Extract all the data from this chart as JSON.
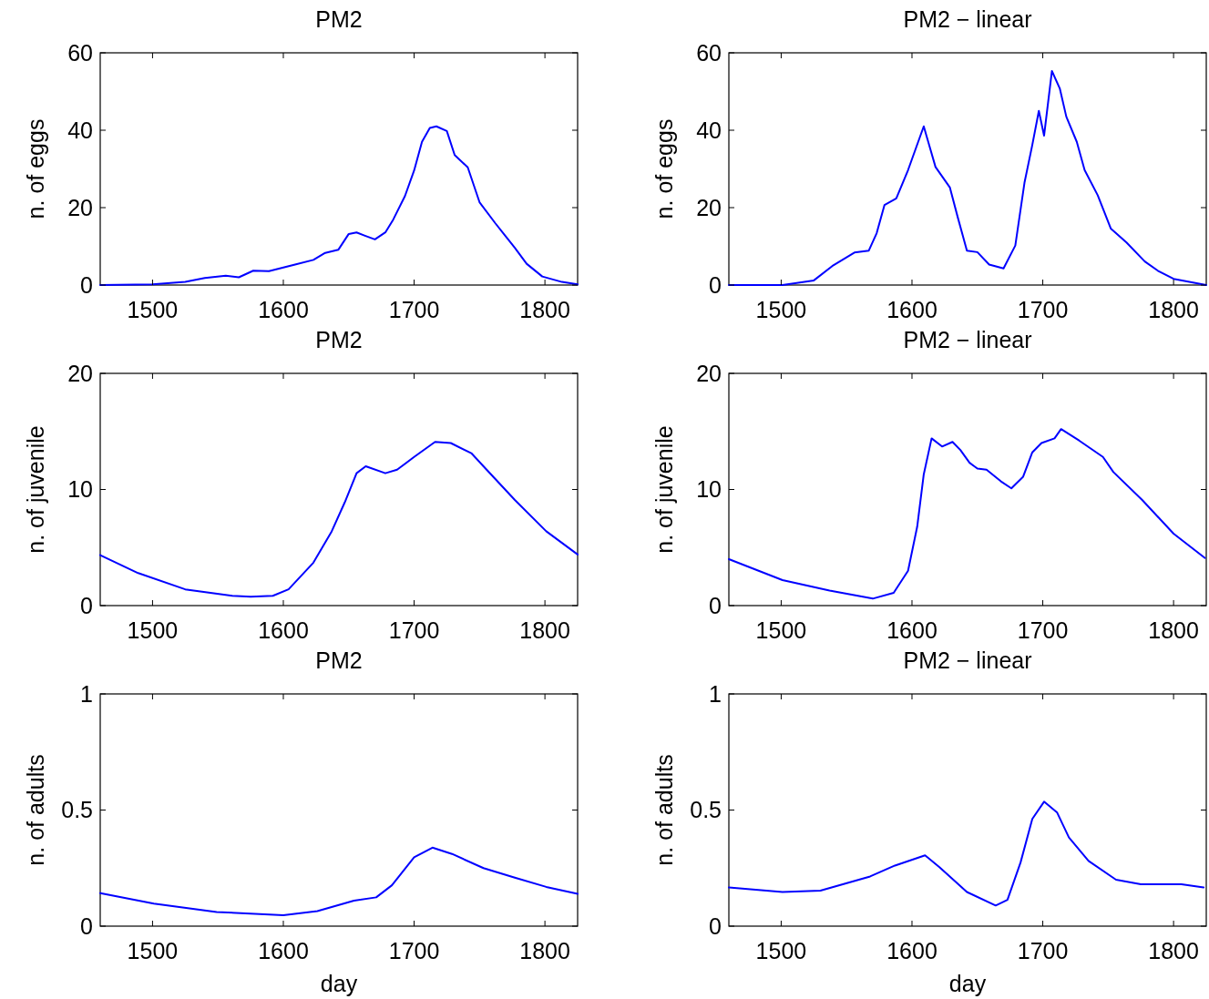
{
  "chart_data": [
    {
      "type": "line",
      "title": "PM2",
      "ylabel": "n. of eggs",
      "xlim": [
        1460,
        1825
      ],
      "xticks": [
        1500,
        1600,
        1700,
        1800
      ],
      "ylim": [
        0,
        60
      ],
      "yticks": [
        0,
        20,
        40,
        60
      ],
      "series": [
        {
          "color": "#0000ff",
          "x": [
            1460,
            1500,
            1525,
            1540,
            1556,
            1566,
            1577,
            1589,
            1609,
            1623,
            1632,
            1642,
            1650,
            1656,
            1662,
            1670,
            1678,
            1684,
            1693,
            1700,
            1706,
            1712,
            1717,
            1725,
            1731,
            1741,
            1750,
            1762,
            1777,
            1786,
            1798,
            1813,
            1825
          ],
          "values": [
            0,
            0.2,
            0.8,
            1.8,
            2.4,
            2,
            3.7,
            3.6,
            5.3,
            6.5,
            8.3,
            9.1,
            13.2,
            13.6,
            12.8,
            11.8,
            13.6,
            16.9,
            23,
            29.6,
            37,
            40.6,
            41,
            39.8,
            33.6,
            30.4,
            21.4,
            16,
            9.6,
            5.5,
            2.2,
            0.8,
            0.2
          ]
        }
      ]
    },
    {
      "type": "line",
      "title": "PM2 − linear",
      "ylabel": "n. of eggs",
      "xlim": [
        1460,
        1825
      ],
      "xticks": [
        1500,
        1600,
        1700,
        1800
      ],
      "ylim": [
        0,
        60
      ],
      "yticks": [
        0,
        20,
        40,
        60
      ],
      "series": [
        {
          "color": "#0000ff",
          "x": [
            1460,
            1501,
            1525,
            1539,
            1556,
            1567,
            1573,
            1579,
            1588,
            1597,
            1609,
            1618,
            1629,
            1635,
            1642,
            1650,
            1659,
            1670,
            1679,
            1686,
            1692,
            1697,
            1701,
            1707,
            1713,
            1718,
            1726,
            1732,
            1742,
            1752,
            1764,
            1778,
            1788,
            1800,
            1825
          ],
          "values": [
            0,
            0,
            1.2,
            4.9,
            8.4,
            8.9,
            13.4,
            20.7,
            22.4,
            29.7,
            41,
            30.5,
            25.2,
            17.5,
            8.9,
            8.5,
            5.3,
            4.3,
            10.2,
            26.4,
            36.2,
            45,
            38.6,
            55.3,
            50.8,
            43.5,
            37,
            29.7,
            23.2,
            14.6,
            11,
            6.1,
            3.7,
            1.6,
            0
          ]
        }
      ]
    },
    {
      "type": "line",
      "title": "PM2",
      "ylabel": "n. of juvenile",
      "xlim": [
        1460,
        1825
      ],
      "xticks": [
        1500,
        1600,
        1700,
        1800
      ],
      "ylim": [
        0,
        20
      ],
      "yticks": [
        0,
        10,
        20
      ],
      "series": [
        {
          "color": "#0000ff",
          "x": [
            1460,
            1489,
            1525,
            1561,
            1575,
            1592,
            1604,
            1623,
            1637,
            1647,
            1656,
            1663,
            1678,
            1687,
            1700,
            1716,
            1728,
            1744,
            1753,
            1777,
            1801,
            1825
          ],
          "values": [
            4.35,
            2.8,
            1.4,
            0.84,
            0.76,
            0.84,
            1.4,
            3.7,
            6.4,
            8.9,
            11.4,
            12,
            11.4,
            11.7,
            12.8,
            14.1,
            14,
            13.1,
            12,
            9.1,
            6.4,
            4.4
          ]
        }
      ]
    },
    {
      "type": "line",
      "title": "PM2 − linear",
      "ylabel": "n. of juvenile",
      "xlim": [
        1460,
        1825
      ],
      "xticks": [
        1500,
        1600,
        1700,
        1800
      ],
      "ylim": [
        0,
        20
      ],
      "yticks": [
        0,
        10,
        20
      ],
      "series": [
        {
          "color": "#0000ff",
          "x": [
            1460,
            1501,
            1537,
            1570,
            1586,
            1597,
            1604,
            1609,
            1615,
            1623,
            1631,
            1637,
            1644,
            1650,
            1657,
            1668,
            1676,
            1685,
            1692,
            1699,
            1709,
            1714,
            1728,
            1746,
            1754,
            1776,
            1800,
            1824
          ],
          "values": [
            4,
            2.2,
            1.3,
            0.6,
            1.1,
            3,
            6.8,
            11.3,
            14.4,
            13.7,
            14.1,
            13.4,
            12.3,
            11.8,
            11.7,
            10.7,
            10.1,
            11.1,
            13.2,
            14,
            14.4,
            15.2,
            14.2,
            12.8,
            11.5,
            9.1,
            6.2,
            4.1
          ]
        }
      ]
    },
    {
      "type": "line",
      "title": "PM2",
      "ylabel": "n. of adults",
      "xlabel": "day",
      "xlim": [
        1460,
        1825
      ],
      "xticks": [
        1500,
        1600,
        1700,
        1800
      ],
      "ylim": [
        0,
        1
      ],
      "yticks": [
        0,
        0.5,
        1
      ],
      "series": [
        {
          "color": "#0000ff",
          "x": [
            1460,
            1501,
            1549,
            1600,
            1626,
            1654,
            1671,
            1683,
            1700,
            1714,
            1729,
            1753,
            1777,
            1801,
            1825
          ],
          "values": [
            0.142,
            0.097,
            0.061,
            0.047,
            0.065,
            0.11,
            0.124,
            0.176,
            0.297,
            0.338,
            0.311,
            0.25,
            0.209,
            0.169,
            0.139
          ]
        }
      ]
    },
    {
      "type": "line",
      "title": "PM2 − linear",
      "ylabel": "n. of adults",
      "xlabel": "day",
      "xlim": [
        1460,
        1825
      ],
      "xticks": [
        1500,
        1600,
        1700,
        1800
      ],
      "ylim": [
        0,
        1
      ],
      "yticks": [
        0,
        0.5,
        1
      ],
      "series": [
        {
          "color": "#0000ff",
          "x": [
            1460,
            1501,
            1530,
            1568,
            1587,
            1610,
            1621,
            1642,
            1664,
            1673,
            1683,
            1692,
            1701,
            1711,
            1720,
            1735,
            1756,
            1775,
            1806,
            1823
          ],
          "values": [
            0.167,
            0.147,
            0.153,
            0.214,
            0.261,
            0.305,
            0.254,
            0.147,
            0.089,
            0.113,
            0.274,
            0.462,
            0.536,
            0.489,
            0.382,
            0.281,
            0.2,
            0.18,
            0.18,
            0.167
          ]
        }
      ]
    }
  ]
}
